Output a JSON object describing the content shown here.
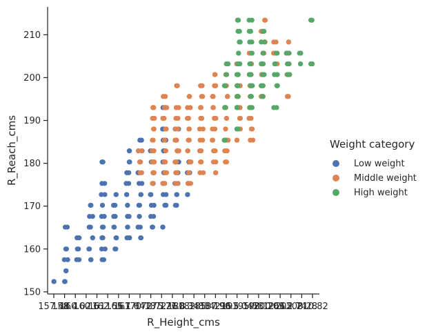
{
  "chart_data": {
    "type": "scatter",
    "xlabel": "R_Height_cms",
    "ylabel": "R_Reach_cms",
    "ylim": [
      149.5,
      216.5
    ],
    "x_is_categorical": true,
    "x_categories": [
      "157.48",
      "160.02",
      "162.56",
      "165.10",
      "167.64",
      "170.18",
      "172.72",
      "175.26",
      "177.80",
      "180.34",
      "182.88",
      "185.42",
      "187.96",
      "190.50",
      "193.04",
      "195.58",
      "198.12",
      "200.66",
      "203.20",
      "205.74",
      "208.28",
      "210.82"
    ],
    "x_tick_labels_partial": [
      "157.48",
      "158.4",
      "160.02",
      "160.6",
      "161",
      "162.56",
      "165.1",
      "167.64",
      "170.18",
      "172.72",
      "175.26",
      "177.8",
      "180.34",
      "182.88",
      "185.42",
      "187.96",
      "190.5",
      "193.04",
      "195.58",
      "198.12",
      "200.66",
      "203.2",
      "205.74",
      "208.28",
      "210.82"
    ],
    "yticks": [
      150,
      160,
      170,
      180,
      190,
      200,
      210
    ],
    "grid": false,
    "legend_position": "right",
    "legend_title": "Weight category",
    "series": [
      {
        "name": "Low weight",
        "color": "#4c72b0",
        "points": [
          [
            "157.48",
            152.4
          ],
          [
            "160.02",
            152.4
          ],
          [
            "160.02",
            154.9
          ],
          [
            "160.02",
            157.5
          ],
          [
            "160.02",
            160.0
          ],
          [
            "160.02",
            165.1
          ],
          [
            "162.56",
            157.5
          ],
          [
            "162.56",
            160.0
          ],
          [
            "162.56",
            162.6
          ],
          [
            "165.10",
            157.5
          ],
          [
            "165.10",
            160.0
          ],
          [
            "165.10",
            162.6
          ],
          [
            "165.10",
            165.1
          ],
          [
            "165.10",
            167.6
          ],
          [
            "165.10",
            170.2
          ],
          [
            "167.64",
            157.5
          ],
          [
            "167.64",
            160.0
          ],
          [
            "167.64",
            162.6
          ],
          [
            "167.64",
            165.1
          ],
          [
            "167.64",
            167.6
          ],
          [
            "167.64",
            170.2
          ],
          [
            "167.64",
            172.7
          ],
          [
            "167.64",
            175.3
          ],
          [
            "167.64",
            180.3
          ],
          [
            "170.18",
            160.0
          ],
          [
            "170.18",
            162.6
          ],
          [
            "170.18",
            165.1
          ],
          [
            "170.18",
            167.6
          ],
          [
            "170.18",
            170.2
          ],
          [
            "170.18",
            172.7
          ],
          [
            "172.72",
            162.6
          ],
          [
            "172.72",
            165.1
          ],
          [
            "172.72",
            167.6
          ],
          [
            "172.72",
            170.2
          ],
          [
            "172.72",
            172.7
          ],
          [
            "172.72",
            175.3
          ],
          [
            "172.72",
            177.8
          ],
          [
            "172.72",
            180.3
          ],
          [
            "172.72",
            182.9
          ],
          [
            "175.26",
            162.6
          ],
          [
            "175.26",
            165.1
          ],
          [
            "175.26",
            167.6
          ],
          [
            "175.26",
            170.2
          ],
          [
            "175.26",
            172.7
          ],
          [
            "175.26",
            175.3
          ],
          [
            "175.26",
            177.8
          ],
          [
            "175.26",
            180.3
          ],
          [
            "175.26",
            182.9
          ],
          [
            "175.26",
            185.4
          ],
          [
            "177.80",
            165.1
          ],
          [
            "177.80",
            167.6
          ],
          [
            "177.80",
            170.2
          ],
          [
            "177.80",
            172.7
          ],
          [
            "177.80",
            175.3
          ],
          [
            "177.80",
            177.8
          ],
          [
            "177.80",
            180.3
          ],
          [
            "177.80",
            182.9
          ],
          [
            "180.34",
            165.1
          ],
          [
            "180.34",
            170.2
          ],
          [
            "180.34",
            172.7
          ],
          [
            "180.34",
            175.3
          ],
          [
            "180.34",
            177.8
          ],
          [
            "180.34",
            180.3
          ],
          [
            "180.34",
            182.9
          ],
          [
            "180.34",
            185.4
          ],
          [
            "180.34",
            188.0
          ],
          [
            "180.34",
            193.0
          ],
          [
            "182.88",
            170.2
          ],
          [
            "182.88",
            172.7
          ],
          [
            "182.88",
            175.3
          ],
          [
            "182.88",
            177.8
          ],
          [
            "182.88",
            180.3
          ],
          [
            "182.88",
            182.9
          ],
          [
            "182.88",
            185.4
          ],
          [
            "182.88",
            188.0
          ],
          [
            "185.42",
            172.7
          ],
          [
            "185.42",
            175.3
          ],
          [
            "185.42",
            177.8
          ],
          [
            "185.42",
            180.3
          ]
        ]
      },
      {
        "name": "Middle weight",
        "color": "#dd8452",
        "points": [
          [
            "175.26",
            177.8
          ],
          [
            "175.26",
            180.3
          ],
          [
            "175.26",
            182.9
          ],
          [
            "177.80",
            175.3
          ],
          [
            "177.80",
            177.8
          ],
          [
            "177.80",
            180.3
          ],
          [
            "177.80",
            182.9
          ],
          [
            "177.80",
            185.4
          ],
          [
            "177.80",
            188.0
          ],
          [
            "177.80",
            190.5
          ],
          [
            "177.80",
            193.0
          ],
          [
            "180.34",
            175.3
          ],
          [
            "180.34",
            177.8
          ],
          [
            "180.34",
            180.3
          ],
          [
            "180.34",
            182.9
          ],
          [
            "180.34",
            185.4
          ],
          [
            "180.34",
            188.0
          ],
          [
            "180.34",
            190.5
          ],
          [
            "180.34",
            193.0
          ],
          [
            "180.34",
            195.6
          ],
          [
            "182.88",
            175.3
          ],
          [
            "182.88",
            177.8
          ],
          [
            "182.88",
            180.3
          ],
          [
            "182.88",
            182.9
          ],
          [
            "182.88",
            185.4
          ],
          [
            "182.88",
            188.0
          ],
          [
            "182.88",
            190.5
          ],
          [
            "182.88",
            193.0
          ],
          [
            "182.88",
            198.1
          ],
          [
            "185.42",
            175.3
          ],
          [
            "185.42",
            177.8
          ],
          [
            "185.42",
            180.3
          ],
          [
            "185.42",
            182.9
          ],
          [
            "185.42",
            185.4
          ],
          [
            "185.42",
            188.0
          ],
          [
            "185.42",
            190.5
          ],
          [
            "185.42",
            193.0
          ],
          [
            "185.42",
            195.6
          ],
          [
            "187.96",
            177.8
          ],
          [
            "187.96",
            180.3
          ],
          [
            "187.96",
            182.9
          ],
          [
            "187.96",
            185.4
          ],
          [
            "187.96",
            188.0
          ],
          [
            "187.96",
            190.5
          ],
          [
            "187.96",
            193.0
          ],
          [
            "187.96",
            195.6
          ],
          [
            "187.96",
            198.1
          ],
          [
            "190.50",
            177.8
          ],
          [
            "190.50",
            180.3
          ],
          [
            "190.50",
            182.9
          ],
          [
            "190.50",
            185.4
          ],
          [
            "190.50",
            188.0
          ],
          [
            "190.50",
            190.5
          ],
          [
            "190.50",
            193.0
          ],
          [
            "190.50",
            195.6
          ],
          [
            "190.50",
            198.1
          ],
          [
            "190.50",
            200.7
          ],
          [
            "193.04",
            180.3
          ],
          [
            "193.04",
            182.9
          ],
          [
            "193.04",
            185.4
          ],
          [
            "193.04",
            188.0
          ],
          [
            "193.04",
            190.5
          ],
          [
            "193.04",
            193.0
          ],
          [
            "193.04",
            195.6
          ],
          [
            "193.04",
            198.1
          ],
          [
            "193.04",
            200.7
          ],
          [
            "195.58",
            185.4
          ],
          [
            "195.58",
            188.0
          ],
          [
            "195.58",
            190.5
          ],
          [
            "195.58",
            193.0
          ],
          [
            "195.58",
            195.6
          ],
          [
            "195.58",
            198.1
          ],
          [
            "195.58",
            200.7
          ],
          [
            "195.58",
            203.2
          ],
          [
            "198.12",
            185.4
          ],
          [
            "198.12",
            188.0
          ],
          [
            "198.12",
            190.5
          ],
          [
            "198.12",
            193.0
          ],
          [
            "198.12",
            195.6
          ],
          [
            "198.12",
            198.1
          ],
          [
            "198.12",
            200.7
          ],
          [
            "198.12",
            203.2
          ],
          [
            "198.12",
            205.7
          ],
          [
            "200.66",
            195.6
          ],
          [
            "200.66",
            198.1
          ],
          [
            "200.66",
            200.7
          ],
          [
            "200.66",
            203.2
          ],
          [
            "200.66",
            205.7
          ],
          [
            "200.66",
            208.3
          ],
          [
            "200.66",
            210.8
          ],
          [
            "200.66",
            213.4
          ],
          [
            "203.20",
            200.7
          ],
          [
            "203.20",
            203.2
          ],
          [
            "203.20",
            205.7
          ],
          [
            "203.20",
            208.3
          ],
          [
            "205.74",
            195.6
          ],
          [
            "205.74",
            200.7
          ],
          [
            "205.74",
            205.7
          ],
          [
            "205.74",
            208.3
          ]
        ]
      },
      {
        "name": "High weight",
        "color": "#55a868",
        "points": [
          [
            "193.04",
            185.4
          ],
          [
            "193.04",
            193.0
          ],
          [
            "193.04",
            198.1
          ],
          [
            "193.04",
            200.7
          ],
          [
            "193.04",
            203.2
          ],
          [
            "195.58",
            188.0
          ],
          [
            "195.58",
            193.0
          ],
          [
            "195.58",
            195.6
          ],
          [
            "195.58",
            198.1
          ],
          [
            "195.58",
            200.7
          ],
          [
            "195.58",
            203.2
          ],
          [
            "195.58",
            205.7
          ],
          [
            "195.58",
            208.3
          ],
          [
            "195.58",
            210.8
          ],
          [
            "195.58",
            213.4
          ],
          [
            "198.12",
            193.0
          ],
          [
            "198.12",
            195.6
          ],
          [
            "198.12",
            198.1
          ],
          [
            "198.12",
            200.7
          ],
          [
            "198.12",
            203.2
          ],
          [
            "198.12",
            205.7
          ],
          [
            "198.12",
            208.3
          ],
          [
            "198.12",
            210.8
          ],
          [
            "198.12",
            213.4
          ],
          [
            "200.66",
            195.6
          ],
          [
            "200.66",
            198.1
          ],
          [
            "200.66",
            200.7
          ],
          [
            "200.66",
            203.2
          ],
          [
            "200.66",
            205.7
          ],
          [
            "200.66",
            208.3
          ],
          [
            "200.66",
            210.8
          ],
          [
            "203.20",
            193.0
          ],
          [
            "203.20",
            198.1
          ],
          [
            "203.20",
            200.7
          ],
          [
            "203.20",
            203.2
          ],
          [
            "203.20",
            205.7
          ],
          [
            "205.74",
            200.7
          ],
          [
            "205.74",
            203.2
          ],
          [
            "205.74",
            205.7
          ],
          [
            "208.28",
            203.2
          ],
          [
            "208.28",
            205.7
          ],
          [
            "210.82",
            203.2
          ],
          [
            "210.82",
            213.4
          ]
        ]
      }
    ]
  }
}
